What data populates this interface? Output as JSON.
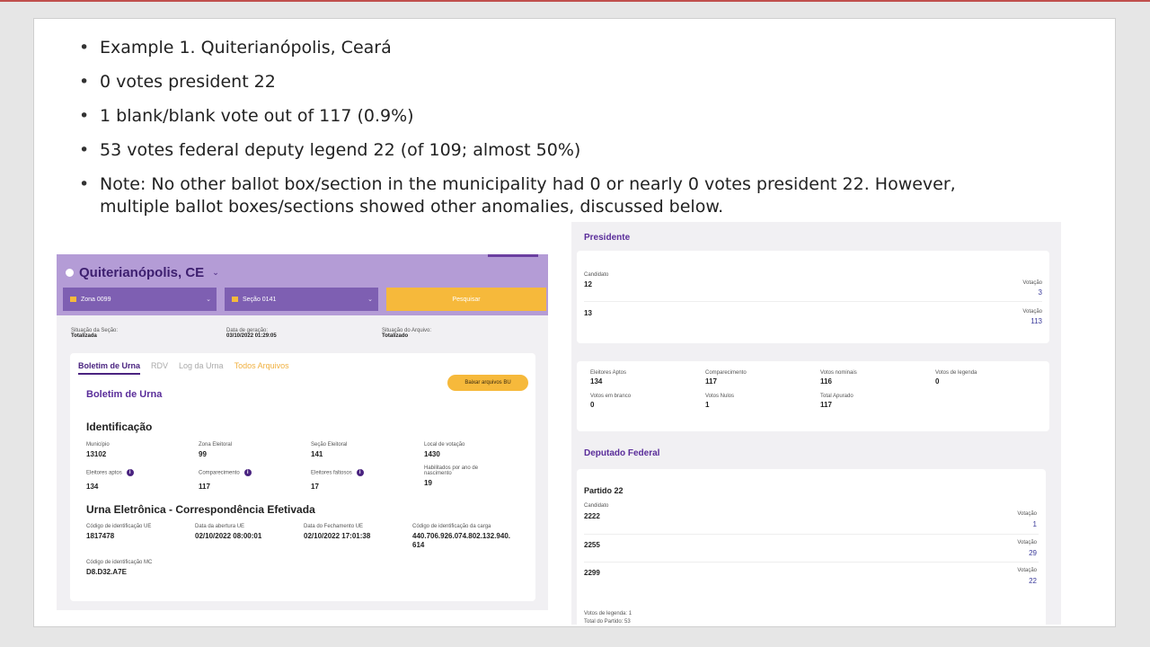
{
  "bullets": [
    "Example 1. Quiterianópolis, Ceará",
    "0 votes president 22",
    "1 blank/blank vote out of 117 (0.9%)",
    "53 votes federal deputy legend 22 (of 109; almost 50%)",
    "Note: No other ballot box/section in the municipality had 0 or nearly 0 votes president 22. However, multiple ballot boxes/sections showed other anomalies, discussed below."
  ],
  "left": {
    "city": "Quiterianópolis, CE",
    "zona_select": "Zona 0099",
    "secao_select": "Seção 0141",
    "search_button": "Pesquisar",
    "situacao_label": "Situação da Seção:",
    "situacao_value": "Totalizada",
    "geracao_label": "Data de geração:",
    "geracao_value": "03/10/2022 01:29:05",
    "arquivo_label": "Situação do Arquivo:",
    "arquivo_value": "Totalizado",
    "tabs": [
      "Boletim de Urna",
      "RDV",
      "Log da Urna",
      "Todos Arquivos"
    ],
    "download_button": "Baixar arquivos BU",
    "bu_title": "Boletim de Urna",
    "identificacao_title": "Identificação",
    "municipio_label": "Município",
    "municipio_value": "13102",
    "zona_label": "Zona Eleitoral",
    "zona_value": "99",
    "secao_label": "Seção Eleitoral",
    "secao_value": "141",
    "local_label": "Local de votação",
    "local_value": "1430",
    "aptos_label": "Eleitores aptos",
    "aptos_value": "134",
    "comparecimento_label": "Comparecimento",
    "comparecimento_value": "117",
    "faltosos_label": "Eleitores faltosos",
    "faltosos_value": "17",
    "habilitados_label": "Habilitados por ano de nascimento",
    "habilitados_value": "19",
    "urna_title": "Urna Eletrônica - Correspondência Efetivada",
    "cod_ue_label": "Código de identificação UE",
    "cod_ue_value": "1817478",
    "abertura_label": "Data da abertura UE",
    "abertura_value": "02/10/2022 08:00:01",
    "fechamento_label": "Data do Fechamento UE",
    "fechamento_value": "02/10/2022 17:01:38",
    "carga_label": "Código de identificação da carga",
    "carga_value_line1": "440.706.926.074.802.132.940.",
    "carga_value_line2": "614",
    "mc_label": "Código de identificação MC",
    "mc_value": "D8.D32.A7E"
  },
  "right": {
    "presidente_title": "Presidente",
    "candidato_label": "Candidato",
    "votacao_label": "Votação",
    "pres_rows": [
      {
        "candidate": "12",
        "votes": "3"
      },
      {
        "candidate": "13",
        "votes": "113"
      }
    ],
    "stats": [
      {
        "label": "Eleitores Aptos",
        "value": "134"
      },
      {
        "label": "Comparecimento",
        "value": "117"
      },
      {
        "label": "Votos nominais",
        "value": "116"
      },
      {
        "label": "Votos de legenda",
        "value": "0"
      },
      {
        "label": "Votos em branco",
        "value": "0"
      },
      {
        "label": "Votos Nulos",
        "value": "1"
      },
      {
        "label": "Total Apurado",
        "value": "117"
      }
    ],
    "deputado_title": "Deputado Federal",
    "partido": "Partido 22",
    "dep_rows": [
      {
        "candidate": "2222",
        "votes": "1"
      },
      {
        "candidate": "2255",
        "votes": "29"
      },
      {
        "candidate": "2299",
        "votes": "22"
      }
    ],
    "votos_legenda": "Votos de legenda: 1",
    "total_partido": "Total do Partido: 53"
  }
}
